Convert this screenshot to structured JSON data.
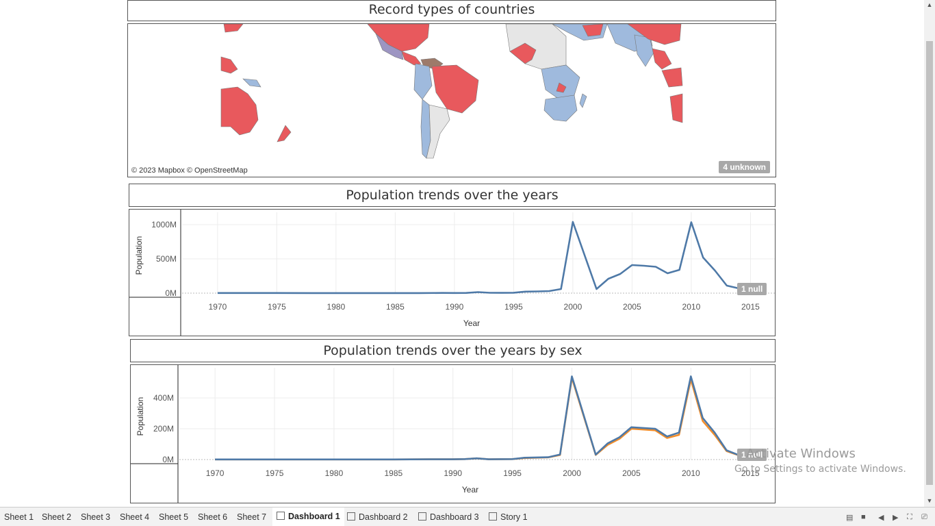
{
  "map": {
    "title": "Record types of countries",
    "credit": "© 2023 Mapbox © OpenStreetMap",
    "unknown_badge": "4 unknown",
    "colors": {
      "red": "#e8595d",
      "blue": "#9fbadd",
      "grey": "#e6e6e6",
      "purple": "#9d95c2",
      "brown": "#9d7a6a"
    }
  },
  "population_chart": {
    "title": "Population trends over the years",
    "null_badge": "1 null"
  },
  "sex_chart": {
    "title": "Population trends over the years by sex",
    "null_badge": "1 null"
  },
  "chart_data": [
    {
      "type": "line",
      "title": "Population trends over the years",
      "xlabel": "Year",
      "ylabel": "Population",
      "xlim": [
        1967,
        2017
      ],
      "ylim": [
        0,
        1100
      ],
      "x_ticks": [
        "1970",
        "1975",
        "1980",
        "1985",
        "1990",
        "1995",
        "2000",
        "2005",
        "2010",
        "2015"
      ],
      "y_ticks": [
        {
          "v": 0,
          "label": "0M"
        },
        {
          "v": 500,
          "label": "500M"
        },
        {
          "v": 1000,
          "label": "1000M"
        }
      ],
      "series": [
        {
          "color": "#4e79a7",
          "x": [
            1970,
            1972,
            1975,
            1978,
            1980,
            1983,
            1985,
            1987,
            1989,
            1990,
            1991,
            1992,
            1993,
            1994,
            1995,
            1996,
            1997,
            1998,
            1999,
            2000,
            2002,
            2003,
            2004,
            2005,
            2006,
            2007,
            2008,
            2009,
            2010,
            2011,
            2012,
            2013,
            2014
          ],
          "y": [
            2,
            2,
            2,
            1,
            1,
            1,
            1,
            1,
            3,
            2,
            3,
            15,
            5,
            4,
            6,
            22,
            25,
            30,
            60,
            1040,
            60,
            210,
            280,
            410,
            400,
            385,
            290,
            340,
            1035,
            520,
            330,
            110,
            70
          ]
        }
      ]
    },
    {
      "type": "line",
      "title": "Population trends over the years by sex",
      "xlabel": "Year",
      "ylabel": "Population",
      "xlim": [
        1967,
        2017
      ],
      "ylim": [
        0,
        560
      ],
      "x_ticks": [
        "1970",
        "1975",
        "1980",
        "1985",
        "1990",
        "1995",
        "2000",
        "2005",
        "2010",
        "2015"
      ],
      "y_ticks": [
        {
          "v": 0,
          "label": "0M"
        },
        {
          "v": 200,
          "label": "200M"
        },
        {
          "v": 400,
          "label": "400M"
        }
      ],
      "series": [
        {
          "color": "#f28e2b",
          "x": [
            1970,
            1975,
            1980,
            1985,
            1988,
            1990,
            1991,
            1992,
            1993,
            1995,
            1996,
            1998,
            1999,
            2000,
            2002,
            2003,
            2004,
            2005,
            2007,
            2008,
            2009,
            2010,
            2011,
            2012,
            2013,
            2014
          ],
          "y": [
            1,
            1,
            1,
            1,
            2,
            2,
            3,
            8,
            2,
            3,
            10,
            14,
            30,
            530,
            30,
            95,
            135,
            200,
            190,
            140,
            160,
            520,
            250,
            160,
            55,
            28
          ]
        },
        {
          "color": "#4e79a7",
          "x": [
            1970,
            1975,
            1980,
            1985,
            1988,
            1990,
            1991,
            1992,
            1993,
            1995,
            1996,
            1998,
            1999,
            2000,
            2002,
            2003,
            2004,
            2005,
            2007,
            2008,
            2009,
            2010,
            2011,
            2012,
            2013,
            2014
          ],
          "y": [
            1,
            1,
            1,
            1,
            2,
            2,
            3,
            8,
            2,
            3,
            12,
            15,
            33,
            540,
            32,
            105,
            145,
            210,
            200,
            150,
            175,
            540,
            270,
            175,
            60,
            30
          ]
        }
      ]
    }
  ],
  "tabs": [
    {
      "label": "Sheet 1",
      "icon": "none"
    },
    {
      "label": "Sheet 2",
      "icon": "none"
    },
    {
      "label": "Sheet 3",
      "icon": "none"
    },
    {
      "label": "Sheet 4",
      "icon": "none"
    },
    {
      "label": "Sheet 5",
      "icon": "none"
    },
    {
      "label": "Sheet 6",
      "icon": "none"
    },
    {
      "label": "Sheet 7",
      "icon": "none"
    },
    {
      "label": "Dashboard 1",
      "icon": "dashboard-icon",
      "active": true
    },
    {
      "label": "Dashboard 2",
      "icon": "dashboard-icon"
    },
    {
      "label": "Dashboard 3",
      "icon": "dashboard-icon"
    },
    {
      "label": "Story 1",
      "icon": "story-icon"
    }
  ],
  "watermark": {
    "line1": "Activate Windows",
    "line2": "Go to Settings to activate Windows."
  }
}
